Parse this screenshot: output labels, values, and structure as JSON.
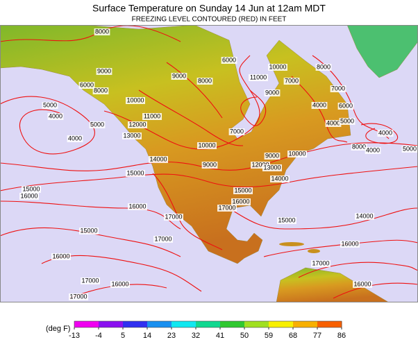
{
  "title": "Surface Temperature on Sunday 14 Jun at 12am MDT",
  "subtitle": "FREEZING LEVEL CONTOURED (RED) IN FEET",
  "contour_labels": [
    "8000",
    "6000",
    "8000",
    "9000",
    "8000",
    "9000",
    "11000",
    "10000",
    "7000",
    "7000",
    "6000",
    "8000",
    "9000",
    "4000",
    "6000",
    "5000",
    "10000",
    "11000",
    "4000",
    "5000",
    "12000",
    "13000",
    "7000",
    "4000",
    "5000",
    "4000",
    "4000",
    "10000",
    "8000",
    "4000",
    "14000",
    "9000",
    "9000",
    "10000",
    "12000",
    "13000",
    "5000",
    "15000",
    "14000",
    "15000",
    "16000",
    "15000",
    "16000",
    "17000",
    "16000",
    "17000",
    "15000",
    "14000",
    "15000",
    "17000",
    "16000",
    "16000",
    "17000",
    "17000",
    "16000",
    "16000",
    "17000"
  ],
  "colorbar": {
    "unit_label": "(deg F)",
    "ticks": [
      -13,
      -4,
      5,
      14,
      23,
      32,
      41,
      50,
      59,
      68,
      77,
      86
    ],
    "colors": [
      "#f000f0",
      "#8a10f0",
      "#3030f0",
      "#1a90f0",
      "#10e8f0",
      "#10d890",
      "#30c830",
      "#a0e020",
      "#f8f000",
      "#f8b000",
      "#f86000"
    ]
  }
}
